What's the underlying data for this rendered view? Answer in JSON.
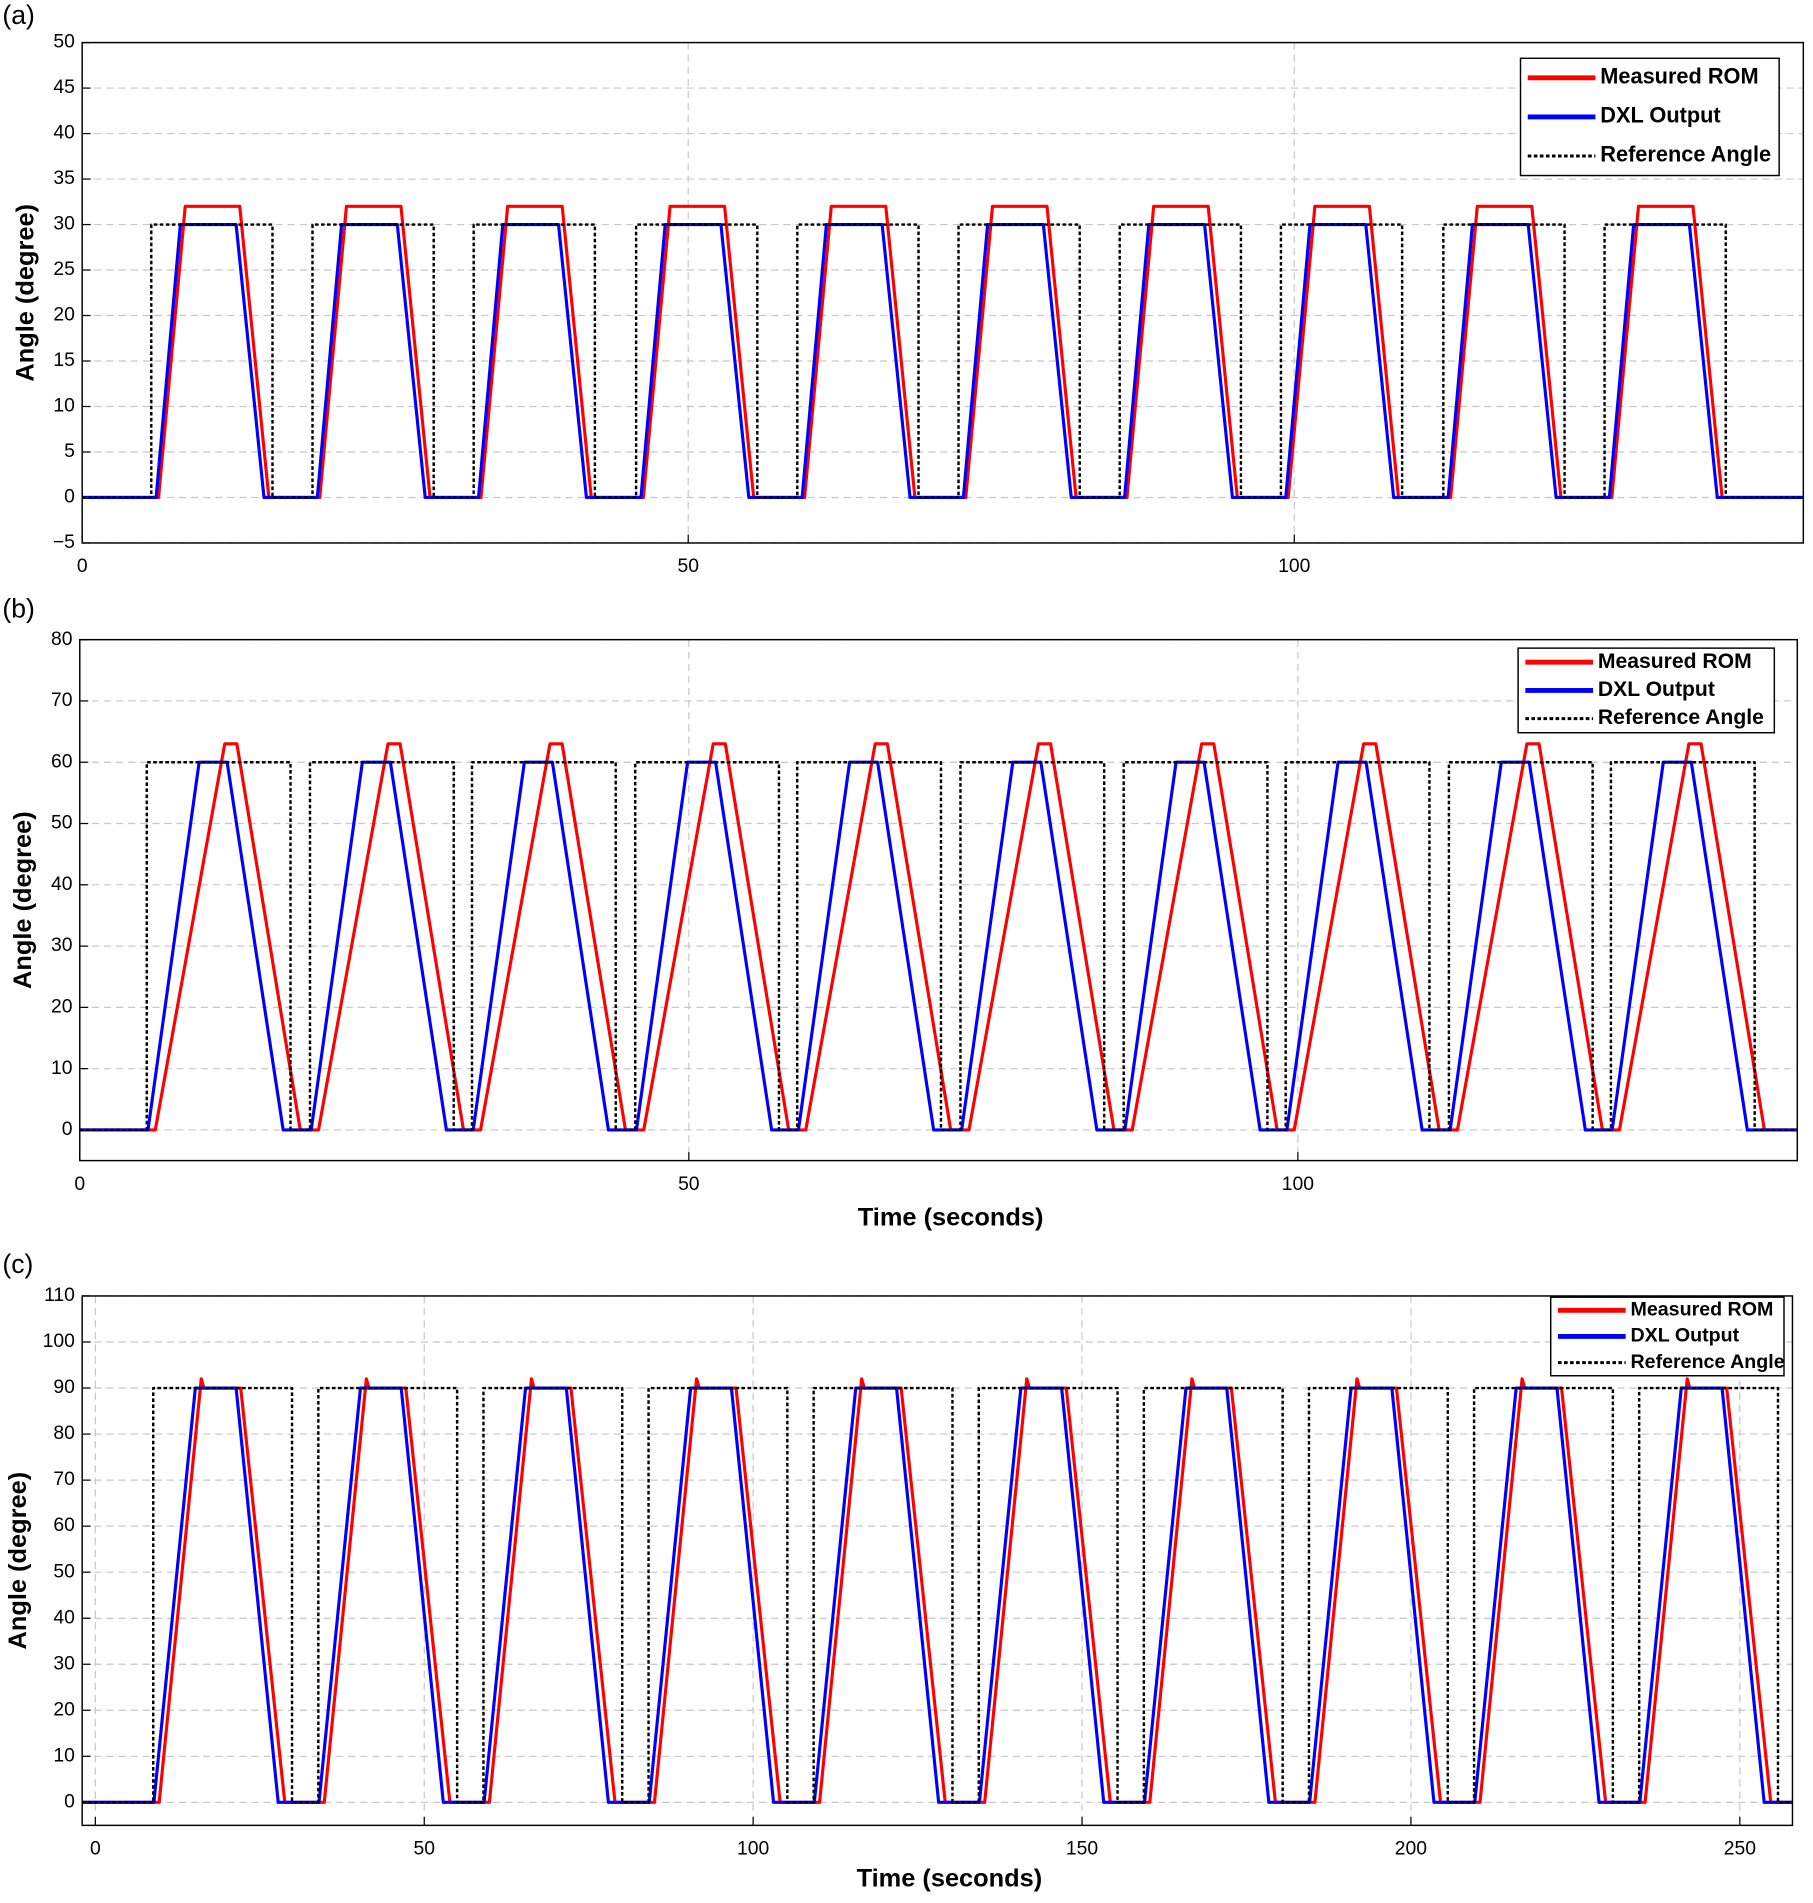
{
  "chart_data": [
    {
      "type": "line",
      "panel_label": "(a)",
      "ylabel": "Angle (degree)",
      "xlim": [
        0,
        142
      ],
      "ylim": [
        -5,
        50
      ],
      "xticks": [
        0,
        50,
        100
      ],
      "yticks": [
        {
          "value": -5,
          "label": "−5"
        },
        0,
        5,
        10,
        15,
        20,
        25,
        30,
        35,
        40,
        45,
        50
      ],
      "grid": true,
      "legend": "upper right",
      "series": [
        {
          "name": "Measured ROM",
          "color": "#ff0000",
          "style": "solid",
          "x": [
            0,
            6.3,
            8.5,
            13.0,
            15.4,
            19.6,
            21.8,
            26.3,
            28.7,
            32.9,
            35.1,
            39.6,
            42.0,
            46.3,
            48.5,
            53.0,
            55.4,
            59.6,
            61.8,
            66.3,
            68.7,
            72.9,
            75.1,
            79.6,
            82.0,
            86.2,
            88.4,
            92.9,
            95.3,
            99.5,
            101.7,
            106.2,
            108.6,
            112.9,
            115.1,
            119.6,
            122.0,
            126.2,
            128.4,
            132.9,
            135.3,
            142
          ],
          "values": [
            0,
            0,
            32,
            32,
            0,
            0,
            32,
            32,
            0,
            0,
            32,
            32,
            0,
            0,
            32,
            32,
            0,
            0,
            32,
            32,
            0,
            0,
            32,
            32,
            0,
            0,
            32,
            32,
            0,
            0,
            32,
            32,
            0,
            0,
            32,
            32,
            0,
            0,
            32,
            32,
            0,
            0
          ]
        },
        {
          "name": "DXL Output",
          "color": "#0000ff",
          "style": "solid",
          "x": [
            0,
            6.1,
            8.1,
            12.7,
            15.0,
            19.4,
            21.4,
            26.0,
            28.3,
            32.7,
            34.7,
            39.3,
            41.6,
            46.1,
            48.1,
            52.7,
            55.0,
            59.4,
            61.4,
            66.0,
            68.3,
            72.7,
            74.7,
            79.3,
            81.6,
            86.0,
            88.0,
            92.6,
            94.9,
            99.3,
            101.3,
            105.9,
            108.2,
            112.7,
            114.7,
            119.3,
            121.6,
            126.0,
            128.0,
            132.6,
            134.9,
            142
          ],
          "values": [
            0,
            0,
            30,
            30,
            0,
            0,
            30,
            30,
            0,
            0,
            30,
            30,
            0,
            0,
            30,
            30,
            0,
            0,
            30,
            30,
            0,
            0,
            30,
            30,
            0,
            0,
            30,
            30,
            0,
            0,
            30,
            30,
            0,
            0,
            30,
            30,
            0,
            0,
            30,
            30,
            0,
            0
          ]
        },
        {
          "name": "Reference Angle",
          "color": "#000000",
          "style": "dotted",
          "x": [
            0,
            5.7,
            5.7,
            15.7,
            15.7,
            19.0,
            19.0,
            29.0,
            29.0,
            32.3,
            32.3,
            42.3,
            42.3,
            45.7,
            45.7,
            55.7,
            55.7,
            59.0,
            59.0,
            69.0,
            69.0,
            72.3,
            72.3,
            82.3,
            82.3,
            85.6,
            85.6,
            95.6,
            95.6,
            98.9,
            98.9,
            108.9,
            108.9,
            112.3,
            112.3,
            122.3,
            122.3,
            125.6,
            125.6,
            135.6,
            135.6,
            142
          ],
          "values": [
            0,
            0,
            30,
            30,
            0,
            0,
            30,
            30,
            0,
            0,
            30,
            30,
            0,
            0,
            30,
            30,
            0,
            0,
            30,
            30,
            0,
            0,
            30,
            30,
            0,
            0,
            30,
            30,
            0,
            0,
            30,
            30,
            0,
            0,
            30,
            30,
            0,
            0,
            30,
            30,
            0,
            0
          ]
        }
      ]
    },
    {
      "type": "line",
      "panel_label": "(b)",
      "ylabel": "Angle (degree)",
      "xlabel": "Time (seconds)",
      "xlim": [
        0,
        141
      ],
      "ylim": [
        -5,
        80
      ],
      "xticks": [
        0,
        50,
        100
      ],
      "yticks": [
        0,
        10,
        20,
        30,
        40,
        50,
        60,
        70,
        80
      ],
      "grid": true,
      "legend": "upper right",
      "series": [
        {
          "name": "Measured ROM",
          "color": "#ff0000",
          "style": "solid",
          "x": [
            0,
            6.2,
            11.9,
            12.9,
            18.1,
            19.6,
            25.3,
            26.3,
            31.5,
            32.9,
            38.6,
            39.6,
            44.8,
            46.3,
            52.0,
            53.0,
            58.2,
            59.6,
            65.3,
            66.3,
            71.5,
            73.0,
            78.7,
            79.7,
            84.9,
            86.4,
            92.1,
            93.1,
            98.3,
            99.7,
            105.4,
            106.4,
            111.6,
            113.1,
            118.8,
            119.8,
            125.0,
            126.4,
            132.1,
            133.1,
            138.3,
            141
          ],
          "values": [
            0,
            0,
            63,
            63,
            0,
            0,
            63,
            63,
            0,
            0,
            63,
            63,
            0,
            0,
            63,
            63,
            0,
            0,
            63,
            63,
            0,
            0,
            63,
            63,
            0,
            0,
            63,
            63,
            0,
            0,
            63,
            63,
            0,
            0,
            63,
            63,
            0,
            0,
            63,
            63,
            0,
            0
          ]
        },
        {
          "name": "DXL Output",
          "color": "#0000ff",
          "style": "solid",
          "x": [
            0,
            5.6,
            9.8,
            12.1,
            16.7,
            19.0,
            23.2,
            25.5,
            30.1,
            32.3,
            36.5,
            38.8,
            43.4,
            45.7,
            49.9,
            52.2,
            56.8,
            59.0,
            63.2,
            65.5,
            70.1,
            72.4,
            76.6,
            78.9,
            83.5,
            85.8,
            90.0,
            92.3,
            96.9,
            99.1,
            103.3,
            105.6,
            110.2,
            112.5,
            116.7,
            119.0,
            123.6,
            125.8,
            130.0,
            132.3,
            136.9,
            141
          ],
          "values": [
            0,
            0,
            60,
            60,
            0,
            0,
            60,
            60,
            0,
            0,
            60,
            60,
            0,
            0,
            60,
            60,
            0,
            0,
            60,
            60,
            0,
            0,
            60,
            60,
            0,
            0,
            60,
            60,
            0,
            0,
            60,
            60,
            0,
            0,
            60,
            60,
            0,
            0,
            60,
            60,
            0,
            0
          ]
        },
        {
          "name": "Reference Angle",
          "color": "#000000",
          "style": "dotted",
          "x": [
            0,
            5.5,
            5.5,
            17.3,
            17.3,
            18.9,
            18.9,
            30.7,
            30.7,
            32.2,
            32.2,
            44.0,
            44.0,
            45.6,
            45.6,
            57.4,
            57.4,
            58.9,
            58.9,
            70.7,
            70.7,
            72.3,
            72.3,
            84.1,
            84.1,
            85.7,
            85.7,
            97.5,
            97.5,
            99.0,
            99.0,
            110.8,
            110.8,
            112.4,
            112.4,
            124.2,
            124.2,
            125.7,
            125.7,
            137.5,
            137.5,
            141
          ],
          "values": [
            0,
            0,
            60,
            60,
            0,
            0,
            60,
            60,
            0,
            0,
            60,
            60,
            0,
            0,
            60,
            60,
            0,
            0,
            60,
            60,
            0,
            0,
            60,
            60,
            0,
            0,
            60,
            60,
            0,
            0,
            60,
            60,
            0,
            0,
            60,
            60,
            0,
            0,
            60,
            60,
            0,
            0
          ]
        }
      ]
    },
    {
      "type": "line",
      "panel_label": "(c)",
      "ylabel": "Angle (degree)",
      "xlabel": "Time (seconds)",
      "xlim": [
        -2,
        258
      ],
      "ylim": [
        -5,
        110
      ],
      "xticks": [
        0,
        50,
        100,
        150,
        200,
        250
      ],
      "yticks": [
        0,
        10,
        20,
        30,
        40,
        50,
        60,
        70,
        80,
        90,
        100,
        110
      ],
      "grid": true,
      "legend": "upper right",
      "series": [
        {
          "name": "Measured ROM",
          "color": "#ff0000",
          "style": "solid",
          "x": [
            -2,
            9.7,
            16.1,
            16.5,
            22.1,
            28.8,
            34.8,
            41.2,
            41.6,
            47.2,
            53.9,
            59.9,
            66.3,
            66.7,
            72.3,
            79.0,
            85.0,
            91.4,
            91.8,
            97.4,
            104.1,
            110.1,
            116.5,
            116.9,
            122.5,
            129.2,
            135.2,
            141.6,
            142.0,
            147.6,
            154.3,
            160.3,
            166.7,
            167.1,
            172.7,
            179.4,
            185.4,
            191.8,
            192.2,
            197.8,
            204.5,
            210.5,
            216.9,
            217.3,
            222.9,
            229.6,
            235.6,
            242.0,
            242.4,
            248.0,
            254.7,
            258
          ],
          "values": [
            0,
            0,
            92,
            90,
            90,
            0,
            0,
            92,
            90,
            90,
            0,
            0,
            92,
            90,
            90,
            0,
            0,
            92,
            90,
            90,
            0,
            0,
            92,
            90,
            90,
            0,
            0,
            92,
            90,
            90,
            0,
            0,
            92,
            90,
            90,
            0,
            0,
            92,
            90,
            90,
            0,
            0,
            92,
            90,
            90,
            0,
            0,
            92,
            90,
            90,
            0,
            0
          ]
        },
        {
          "name": "DXL Output",
          "color": "#0000ff",
          "style": "solid",
          "x": [
            -2,
            8.9,
            15.2,
            21.4,
            27.8,
            34.0,
            40.3,
            46.5,
            52.9,
            59.1,
            65.4,
            71.6,
            78.0,
            84.2,
            90.5,
            96.7,
            103.1,
            109.3,
            115.6,
            121.8,
            128.2,
            134.4,
            140.7,
            146.9,
            153.3,
            159.5,
            165.8,
            172.0,
            178.4,
            184.6,
            190.9,
            197.1,
            203.5,
            209.7,
            216.0,
            222.2,
            228.6,
            234.8,
            241.1,
            247.3,
            253.7,
            258
          ],
          "values": [
            0,
            0,
            90,
            90,
            0,
            0,
            90,
            90,
            0,
            0,
            90,
            90,
            0,
            0,
            90,
            90,
            0,
            0,
            90,
            90,
            0,
            0,
            90,
            90,
            0,
            0,
            90,
            90,
            0,
            0,
            90,
            90,
            0,
            0,
            90,
            90,
            0,
            0,
            90,
            90,
            0,
            0
          ]
        },
        {
          "name": "Reference Angle",
          "color": "#000000",
          "style": "dotted",
          "x": [
            -2,
            8.8,
            8.8,
            29.9,
            29.9,
            33.9,
            33.9,
            55.0,
            55.0,
            59.0,
            59.0,
            80.1,
            80.1,
            84.1,
            84.1,
            105.2,
            105.2,
            109.2,
            109.2,
            130.3,
            130.3,
            134.3,
            134.3,
            155.4,
            155.4,
            159.4,
            159.4,
            180.5,
            180.5,
            184.5,
            184.5,
            205.6,
            205.6,
            209.6,
            209.6,
            230.7,
            230.7,
            234.7,
            234.7,
            255.8,
            255.8,
            258
          ],
          "values": [
            0,
            0,
            90,
            90,
            0,
            0,
            90,
            90,
            0,
            0,
            90,
            90,
            0,
            0,
            90,
            90,
            0,
            0,
            90,
            90,
            0,
            0,
            90,
            90,
            0,
            0,
            90,
            90,
            0,
            0,
            90,
            90,
            0,
            0,
            90,
            90,
            0,
            0,
            90,
            90,
            0,
            0
          ]
        }
      ]
    }
  ]
}
